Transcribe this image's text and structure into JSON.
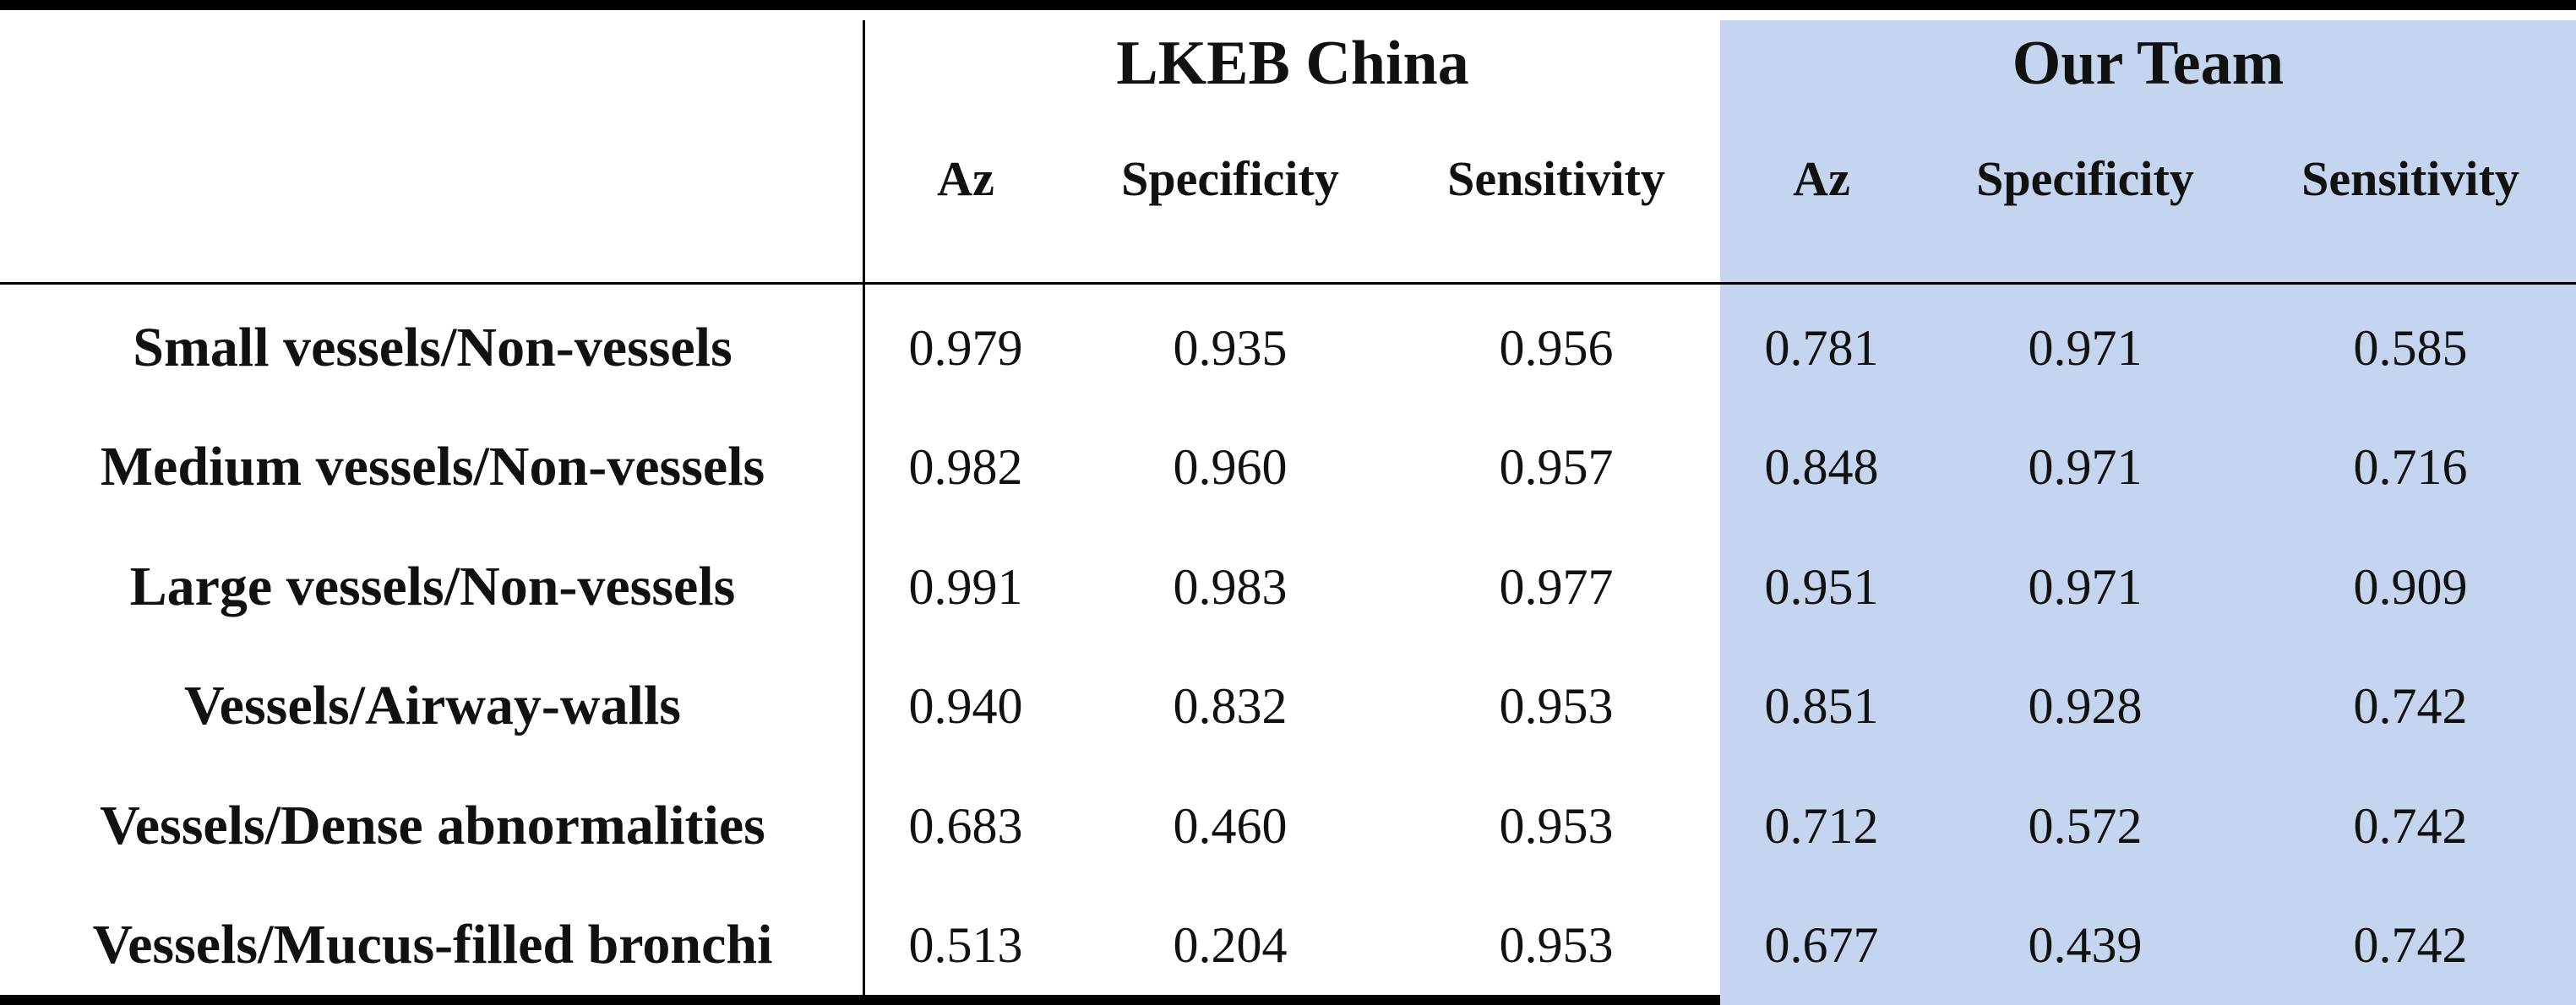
{
  "table": {
    "groups": [
      {
        "name": "LKEB China",
        "columns": [
          "Az",
          "Specificity",
          "Sensitivity"
        ]
      },
      {
        "name": "Our Team",
        "columns": [
          "Az",
          "Specificity",
          "Sensitivity"
        ]
      }
    ],
    "rows": [
      {
        "label": "Small vessels/Non-vessels",
        "values": [
          "0.979",
          "0.935",
          "0.956",
          "0.781",
          "0.971",
          "0.585"
        ]
      },
      {
        "label": "Medium vessels/Non-vessels",
        "values": [
          "0.982",
          "0.960",
          "0.957",
          "0.848",
          "0.971",
          "0.716"
        ]
      },
      {
        "label": "Large vessels/Non-vessels",
        "values": [
          "0.991",
          "0.983",
          "0.977",
          "0.951",
          "0.971",
          "0.909"
        ]
      },
      {
        "label": "Vessels/Airway-walls",
        "values": [
          "0.940",
          "0.832",
          "0.953",
          "0.851",
          "0.928",
          "0.742"
        ]
      },
      {
        "label": "Vessels/Dense abnormalities",
        "values": [
          "0.683",
          "0.460",
          "0.953",
          "0.712",
          "0.572",
          "0.742"
        ]
      },
      {
        "label": "Vessels/Mucus-filled bronchi",
        "values": [
          "0.513",
          "0.204",
          "0.953",
          "0.677",
          "0.439",
          "0.742"
        ]
      }
    ]
  },
  "colors": {
    "our_team_background": "#c5d4ef",
    "rules": "#000000",
    "text": "#111111"
  }
}
